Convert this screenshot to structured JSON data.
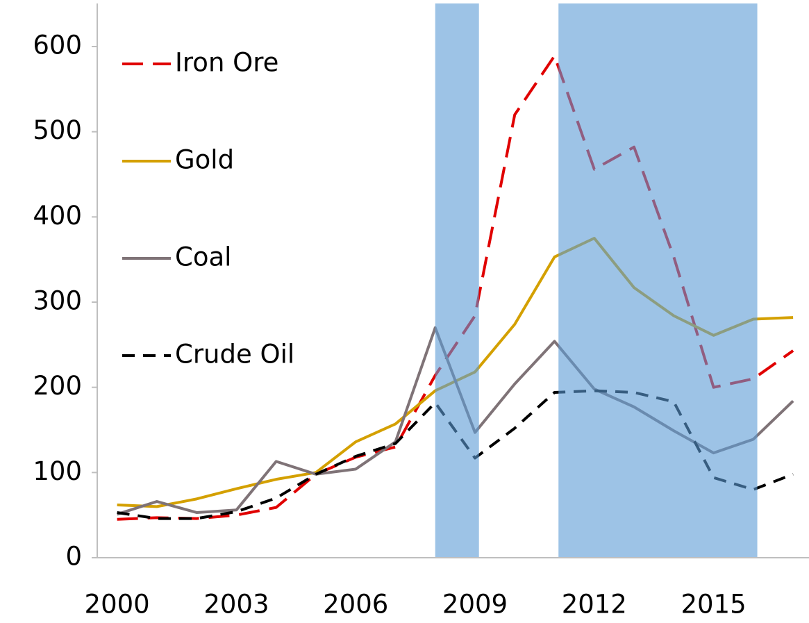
{
  "chart_data": {
    "type": "line",
    "x": [
      2000,
      2001,
      2002,
      2003,
      2004,
      2005,
      2006,
      2007,
      2008,
      2009,
      2010,
      2011,
      2012,
      2013,
      2014,
      2015,
      2016,
      2017
    ],
    "series": [
      {
        "name": "Iron Ore",
        "color": "#e00000",
        "dash": true,
        "values": [
          45,
          47,
          46,
          50,
          59,
          98,
          118,
          130,
          214,
          284,
          520,
          589,
          456,
          482,
          353,
          200,
          210,
          243
        ]
      },
      {
        "name": "Gold",
        "color": "#d4a000",
        "dash": false,
        "values": [
          62,
          60,
          69,
          81,
          92,
          100,
          136,
          157,
          196,
          218,
          274,
          353,
          375,
          317,
          284,
          261,
          280,
          282
        ]
      },
      {
        "name": "Coal",
        "color": "#7f7377",
        "dash": false,
        "values": [
          51,
          66,
          53,
          56,
          113,
          98,
          104,
          136,
          270,
          147,
          204,
          254,
          198,
          177,
          149,
          123,
          139,
          184
        ]
      },
      {
        "name": "Crude Oil",
        "color": "#000000",
        "dash": true,
        "values": [
          53,
          46,
          46,
          54,
          70,
          98,
          119,
          134,
          182,
          117,
          152,
          194,
          196,
          194,
          183,
          94,
          80,
          98
        ]
      }
    ],
    "shaded_regions": [
      [
        2008,
        2009.1
      ],
      [
        2011.1,
        2016.1
      ]
    ],
    "shade_color": "#5b9bd5",
    "xlim": [
      1999.5,
      2017.4
    ],
    "xticks": [
      2000,
      2003,
      2006,
      2009,
      2012,
      2015
    ],
    "ylim": [
      0,
      600
    ],
    "yticks": [
      0,
      100,
      200,
      300,
      400,
      500,
      600
    ],
    "legend": "upper left"
  }
}
